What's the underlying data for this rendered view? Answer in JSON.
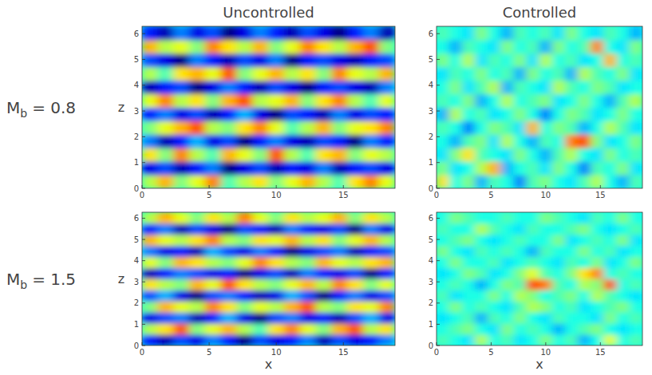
{
  "column_titles": [
    "Uncontrolled",
    "Controlled"
  ],
  "row_labels": [
    {
      "main": "M",
      "sub": "b",
      "rest": "= 0.8"
    },
    {
      "main": "M",
      "sub": "b",
      "rest": "= 1.5"
    }
  ],
  "chart_data": [
    {
      "type": "heatmap",
      "ylabel": "z",
      "xlim": [
        0,
        18.85
      ],
      "ylim": [
        0,
        6.283
      ],
      "xticks": [
        0,
        5,
        10,
        15
      ],
      "yticks": [
        0,
        1,
        2,
        3,
        4,
        5,
        6
      ],
      "clim": [
        -0.8,
        1.2
      ],
      "cells": [
        [
          0.3,
          0.6,
          0.2,
          0.4,
          0.7,
          0.1,
          0.3,
          0.5,
          0.2,
          0.4,
          0.6,
          0.3,
          0.1,
          0.5,
          0.7,
          0.4
        ],
        [
          -0.6,
          -0.4,
          -0.7,
          -0.5,
          -0.3,
          -0.8,
          -0.6,
          -0.4,
          -0.7,
          -0.5,
          -0.6,
          -0.3,
          -0.7,
          -0.5,
          -0.4,
          -0.6
        ],
        [
          0.5,
          0.2,
          0.7,
          0.3,
          0.1,
          0.6,
          0.4,
          0.2,
          0.8,
          0.3,
          0.1,
          0.5,
          0.6,
          0.2,
          0.4,
          0.3
        ],
        [
          -0.3,
          -0.7,
          -0.5,
          -0.2,
          -0.6,
          -0.4,
          -0.8,
          -0.5,
          -0.3,
          -0.6,
          -0.7,
          -0.4,
          -0.5,
          -0.8,
          -0.3,
          -0.5
        ],
        [
          0.2,
          0.4,
          0.6,
          0.8,
          0.3,
          0.2,
          0.5,
          0.7,
          0.4,
          0.1,
          0.3,
          0.6,
          0.2,
          0.4,
          0.5,
          0.7
        ],
        [
          -0.5,
          -0.3,
          -0.6,
          -0.4,
          -0.7,
          -0.5,
          -0.2,
          -0.6,
          -0.8,
          -0.4,
          -0.5,
          -0.7,
          -0.3,
          -0.6,
          -0.4,
          -0.5
        ],
        [
          0.4,
          0.7,
          0.3,
          0.5,
          0.2,
          0.6,
          0.8,
          0.3,
          0.4,
          0.6,
          0.2,
          0.5,
          0.7,
          0.3,
          0.1,
          0.4
        ],
        [
          -0.7,
          -0.5,
          -0.4,
          -0.8,
          -0.6,
          -0.3,
          -0.5,
          -0.7,
          -0.4,
          -0.6,
          -0.8,
          -0.5,
          -0.4,
          -0.6,
          -0.7,
          -0.3
        ],
        [
          0.3,
          0.1,
          0.5,
          0.6,
          0.4,
          0.8,
          0.2,
          0.4,
          0.6,
          0.3,
          0.5,
          0.2,
          0.7,
          0.4,
          0.3,
          0.6
        ],
        [
          -0.4,
          -0.6,
          -0.8,
          -0.3,
          -0.5,
          -0.7,
          -0.4,
          -0.6,
          -0.3,
          -0.8,
          -0.5,
          -0.4,
          -0.6,
          -0.7,
          -0.5,
          -0.4
        ],
        [
          0.6,
          0.3,
          0.4,
          0.2,
          0.7,
          0.5,
          0.3,
          0.6,
          0.2,
          0.4,
          0.7,
          0.5,
          0.3,
          0.6,
          0.8,
          0.2
        ],
        [
          -0.5,
          -0.7,
          -0.3,
          -0.6,
          -0.4,
          -0.8,
          -0.6,
          -0.3,
          -0.5,
          -0.7,
          -0.4,
          -0.6,
          -0.8,
          -0.5,
          -0.3,
          -0.7
        ]
      ]
    },
    {
      "type": "heatmap",
      "xlim": [
        0,
        18.85
      ],
      "ylim": [
        0,
        6.283
      ],
      "xticks": [
        0,
        5,
        10,
        15
      ],
      "yticks": [
        0,
        1,
        2,
        3,
        4,
        5,
        6
      ],
      "clim": [
        -0.8,
        1.2
      ],
      "cells": [
        [
          0.5,
          0.0,
          0.2,
          -0.2,
          0.1,
          0.0,
          -0.3,
          0.1,
          0.2,
          0.0,
          -0.1,
          0.1,
          0.3,
          0.0,
          -0.2,
          0.1
        ],
        [
          0.2,
          -0.1,
          0.0,
          0.3,
          0.6,
          -0.2,
          0.0,
          0.1,
          -0.1,
          0.2,
          0.0,
          -0.3,
          0.1,
          0.0,
          0.2,
          -0.1
        ],
        [
          -0.1,
          0.2,
          0.5,
          0.1,
          0.0,
          -0.1,
          0.2,
          0.0,
          -0.2,
          0.1,
          0.3,
          0.0,
          -0.1,
          0.2,
          0.0,
          0.1
        ],
        [
          0.0,
          -0.2,
          0.1,
          0.2,
          -0.1,
          0.3,
          0.0,
          -0.2,
          0.1,
          0.0,
          0.7,
          0.8,
          0.2,
          -0.1,
          0.0,
          0.2
        ],
        [
          0.1,
          0.0,
          -0.3,
          0.0,
          0.2,
          0.1,
          -0.1,
          0.6,
          0.0,
          0.2,
          0.1,
          -0.2,
          0.0,
          0.3,
          0.1,
          -0.1
        ],
        [
          -0.2,
          0.3,
          0.0,
          0.1,
          -0.1,
          0.0,
          0.2,
          0.0,
          -0.3,
          0.0,
          0.2,
          0.1,
          -0.1,
          0.0,
          0.2,
          0.0
        ],
        [
          0.1,
          0.0,
          0.2,
          -0.2,
          0.0,
          0.3,
          0.0,
          0.1,
          0.2,
          -0.1,
          0.0,
          0.2,
          0.0,
          -0.2,
          0.1,
          0.3
        ],
        [
          0.0,
          0.2,
          -0.1,
          0.1,
          0.3,
          -0.2,
          0.1,
          0.0,
          -0.1,
          0.3,
          0.1,
          0.0,
          0.2,
          0.1,
          -0.1,
          0.0
        ],
        [
          -0.1,
          0.1,
          0.0,
          0.2,
          0.0,
          0.1,
          -0.2,
          0.2,
          0.0,
          0.1,
          -0.2,
          0.3,
          0.1,
          0.0,
          0.2,
          -0.1
        ],
        [
          0.2,
          0.0,
          0.3,
          -0.1,
          0.1,
          0.0,
          0.2,
          -0.1,
          0.3,
          0.0,
          0.1,
          -0.1,
          0.0,
          0.6,
          0.0,
          0.1
        ],
        [
          0.0,
          -0.2,
          0.1,
          0.0,
          -0.1,
          0.2,
          0.0,
          0.1,
          -0.2,
          0.2,
          0.0,
          0.1,
          0.7,
          0.0,
          -0.1,
          0.2
        ],
        [
          0.1,
          0.0,
          -0.1,
          0.2,
          0.0,
          -0.2,
          0.1,
          0.0,
          0.1,
          -0.1,
          0.2,
          0.0,
          -0.1,
          0.1,
          0.0,
          -0.2
        ]
      ]
    },
    {
      "type": "heatmap",
      "xlabel": "x",
      "ylabel": "z",
      "xlim": [
        0,
        18.85
      ],
      "ylim": [
        0,
        6.283
      ],
      "xticks": [
        0,
        5,
        10,
        15
      ],
      "yticks": [
        0,
        1,
        2,
        3,
        4,
        5,
        6
      ],
      "clim": [
        -0.8,
        1.2
      ],
      "cells": [
        [
          -0.5,
          -0.7,
          -0.4,
          -0.6,
          -0.3,
          -0.5,
          -0.8,
          -0.4,
          -0.6,
          -0.5,
          -0.3,
          -0.7,
          -0.4,
          -0.6,
          -0.5,
          -0.3
        ],
        [
          0.3,
          0.5,
          0.8,
          0.2,
          0.4,
          0.6,
          0.3,
          0.1,
          0.5,
          0.7,
          0.4,
          0.2,
          0.6,
          0.8,
          0.3,
          0.5
        ],
        [
          -0.6,
          -0.4,
          -0.3,
          -0.7,
          -0.5,
          -0.2,
          -0.6,
          -0.8,
          -0.4,
          -0.3,
          -0.6,
          -0.5,
          -0.7,
          -0.4,
          -0.2,
          -0.6
        ],
        [
          0.2,
          0.6,
          0.4,
          0.3,
          0.7,
          0.5,
          0.2,
          0.4,
          0.3,
          0.6,
          0.8,
          0.3,
          0.2,
          0.5,
          0.4,
          0.7
        ],
        [
          -0.4,
          -0.2,
          -0.6,
          -0.8,
          -0.4,
          -0.3,
          -0.5,
          -0.7,
          -0.6,
          -0.2,
          -0.4,
          -0.8,
          -0.5,
          -0.3,
          -0.6,
          -0.4
        ],
        [
          0.5,
          0.3,
          0.2,
          0.6,
          0.4,
          0.8,
          0.5,
          0.3,
          0.2,
          0.4,
          0.6,
          0.3,
          0.7,
          0.5,
          0.2,
          0.4
        ],
        [
          -0.7,
          -0.5,
          -0.3,
          -0.4,
          -0.6,
          -0.5,
          -0.8,
          -0.6,
          -0.4,
          -0.7,
          -0.3,
          -0.5,
          -0.6,
          -0.4,
          -0.8,
          -0.5
        ],
        [
          0.4,
          0.2,
          0.6,
          0.5,
          0.3,
          0.2,
          0.4,
          0.7,
          0.5,
          0.3,
          0.2,
          0.6,
          0.4,
          0.3,
          0.5,
          0.6
        ],
        [
          -0.3,
          -0.6,
          -0.5,
          -0.7,
          -0.2,
          -0.4,
          -0.6,
          -0.3,
          -0.5,
          -0.8,
          -0.6,
          -0.4,
          -0.3,
          -0.7,
          -0.5,
          -0.4
        ],
        [
          0.6,
          0.4,
          0.3,
          0.5,
          0.7,
          0.3,
          0.2,
          0.5,
          0.4,
          0.6,
          0.3,
          0.5,
          0.2,
          0.4,
          0.6,
          0.3
        ],
        [
          -0.5,
          -0.3,
          -0.7,
          -0.4,
          -0.6,
          -0.8,
          -0.4,
          -0.5,
          -0.7,
          -0.3,
          -0.5,
          -0.6,
          -0.4,
          -0.8,
          -0.3,
          -0.6
        ],
        [
          0.3,
          0.6,
          0.4,
          0.2,
          0.5,
          0.3,
          0.7,
          0.4,
          0.2,
          0.5,
          0.3,
          0.4,
          0.6,
          0.2,
          0.5,
          0.3
        ]
      ]
    },
    {
      "type": "heatmap",
      "xlabel": "x",
      "xlim": [
        0,
        18.85
      ],
      "ylim": [
        0,
        6.283
      ],
      "xticks": [
        0,
        5,
        10,
        15
      ],
      "yticks": [
        0,
        1,
        2,
        3,
        4,
        5,
        6
      ],
      "clim": [
        -0.8,
        1.2
      ],
      "cells": [
        [
          0.1,
          0.0,
          -0.1,
          0.3,
          0.0,
          0.1,
          -0.1,
          0.0,
          0.2,
          0.0,
          0.1,
          -0.2,
          0.0,
          0.4,
          0.0,
          0.1
        ],
        [
          0.0,
          0.1,
          0.2,
          0.0,
          -0.1,
          0.2,
          0.0,
          0.1,
          0.0,
          -0.2,
          0.0,
          0.1,
          0.2,
          0.0,
          -0.1,
          0.0
        ],
        [
          -0.1,
          0.0,
          0.1,
          -0.2,
          0.1,
          0.0,
          0.2,
          0.0,
          -0.1,
          0.1,
          0.0,
          0.0,
          -0.1,
          0.2,
          0.0,
          0.1
        ],
        [
          0.0,
          0.2,
          0.0,
          0.1,
          0.0,
          -0.1,
          0.1,
          0.3,
          0.2,
          0.0,
          0.1,
          -0.1,
          0.0,
          0.1,
          0.2,
          0.0
        ],
        [
          0.1,
          -0.1,
          0.0,
          0.0,
          0.2,
          0.0,
          0.3,
          0.2,
          0.0,
          0.1,
          0.2,
          0.0,
          0.3,
          0.1,
          0.0,
          -0.1
        ],
        [
          0.0,
          0.1,
          0.0,
          -0.2,
          0.0,
          0.2,
          0.1,
          0.8,
          0.7,
          0.1,
          0.0,
          0.3,
          0.2,
          0.8,
          0.0,
          0.1
        ],
        [
          -0.1,
          0.0,
          0.2,
          0.1,
          -0.1,
          0.0,
          0.2,
          0.4,
          0.1,
          0.0,
          0.2,
          0.5,
          0.7,
          0.0,
          0.1,
          0.0
        ],
        [
          0.0,
          0.2,
          0.0,
          0.0,
          0.1,
          -0.1,
          0.0,
          0.1,
          0.0,
          -0.1,
          0.1,
          0.0,
          0.2,
          -0.1,
          0.0,
          0.2
        ],
        [
          0.2,
          0.0,
          -0.1,
          0.1,
          0.0,
          0.1,
          0.0,
          -0.2,
          0.1,
          0.0,
          0.0,
          0.2,
          0.0,
          0.1,
          -0.1,
          0.0
        ],
        [
          0.0,
          0.1,
          0.2,
          0.0,
          -0.1,
          0.0,
          0.1,
          0.0,
          0.0,
          0.2,
          -0.1,
          0.0,
          0.1,
          0.0,
          0.2,
          -0.1
        ],
        [
          0.1,
          0.0,
          0.0,
          0.3,
          0.1,
          0.0,
          -0.1,
          0.1,
          0.0,
          0.0,
          0.1,
          0.2,
          0.0,
          -0.1,
          0.0,
          0.1
        ],
        [
          0.0,
          0.2,
          0.1,
          0.0,
          0.0,
          0.1,
          0.0,
          0.0,
          0.2,
          0.1,
          0.0,
          -0.1,
          0.1,
          0.0,
          0.2,
          0.0
        ]
      ]
    }
  ]
}
